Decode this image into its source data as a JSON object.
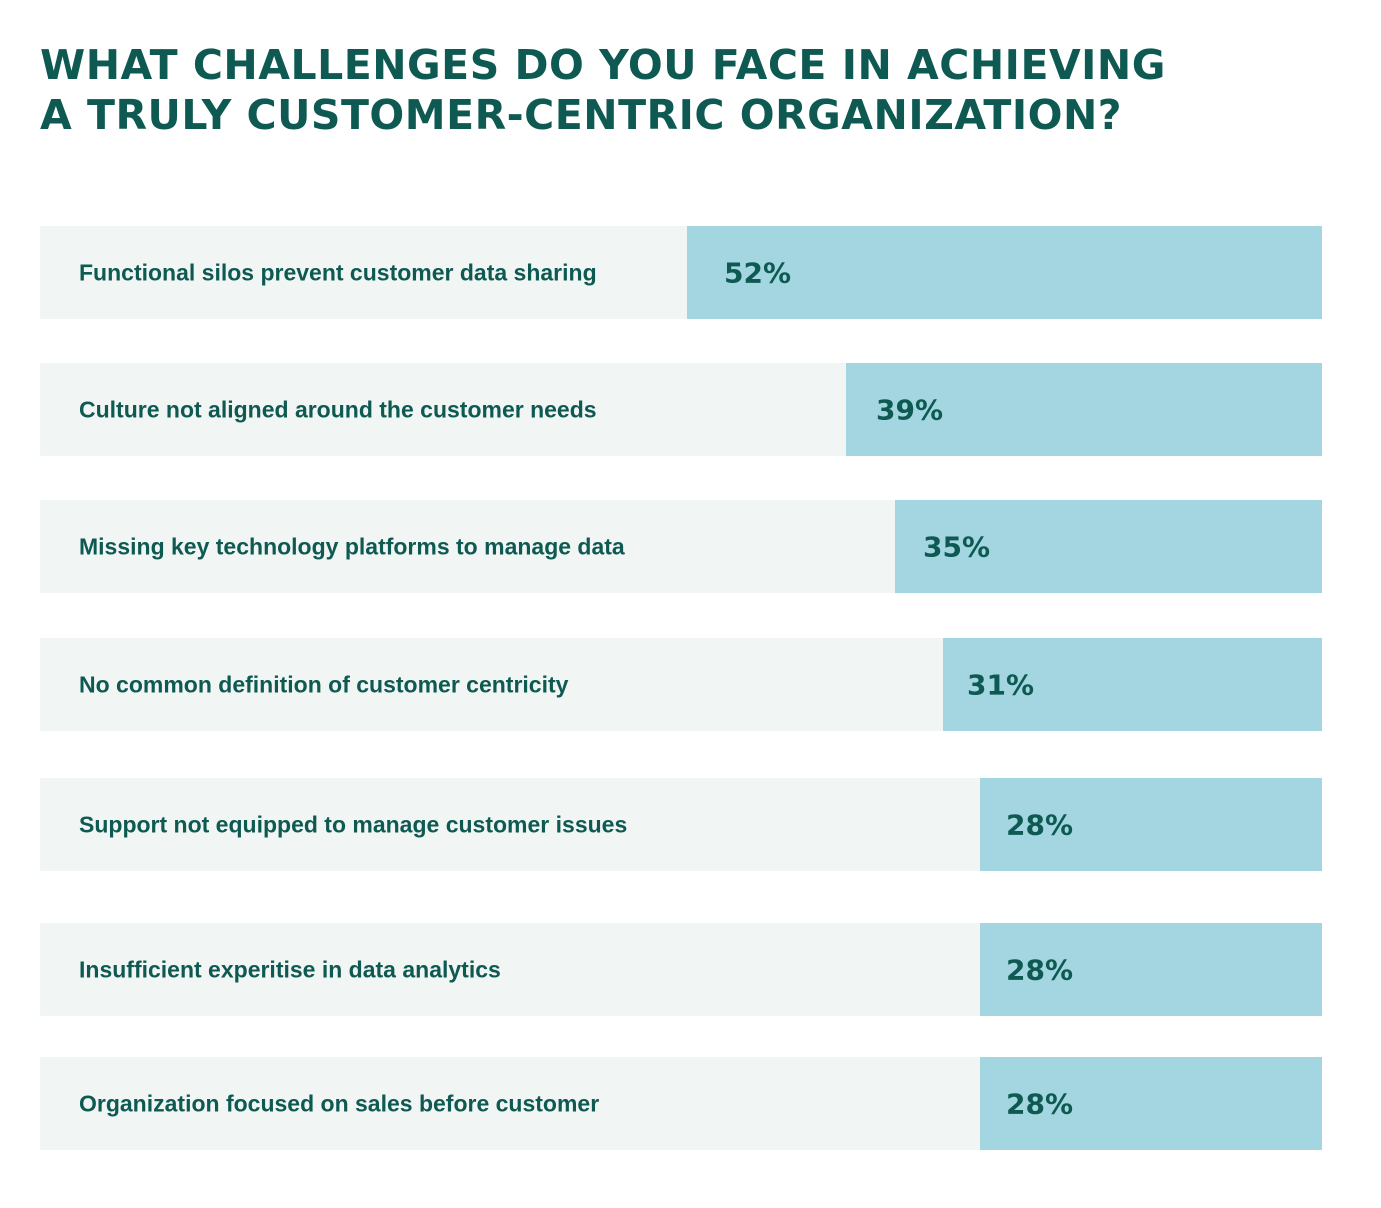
{
  "title_lines": [
    "WHAT CHALLENGES DO YOU FACE IN ACHIEVING",
    "A TRULY CUSTOMER-CENTRIC ORGANIZATION?"
  ],
  "colors": {
    "title": "#0e5a52",
    "row_background": "#f1f5f3",
    "bar": "#a3d6e1",
    "text": "#0e5a52"
  },
  "chart_data": {
    "type": "bar",
    "orientation": "horizontal",
    "title": "WHAT CHALLENGES DO YOU FACE IN ACHIEVING A TRULY CUSTOMER-CENTRIC ORGANIZATION?",
    "categories": [
      "Functional silos prevent customer data sharing",
      "Culture not aligned around the customer needs",
      "Missing key technology platforms to manage data",
      "No common definition of customer centricity",
      "Support not equipped to manage customer issues",
      "Insufficient experitise in data analytics",
      "Organization focused on sales before customer"
    ],
    "values": [
      52,
      39,
      35,
      31,
      28,
      28,
      28
    ],
    "value_labels": [
      "52%",
      "39%",
      "35%",
      "31%",
      "28%",
      "28%",
      "28%"
    ],
    "unit": "%",
    "xlim": [
      0,
      100
    ],
    "bar_anchor": "right",
    "grid": false,
    "legend": "none"
  }
}
